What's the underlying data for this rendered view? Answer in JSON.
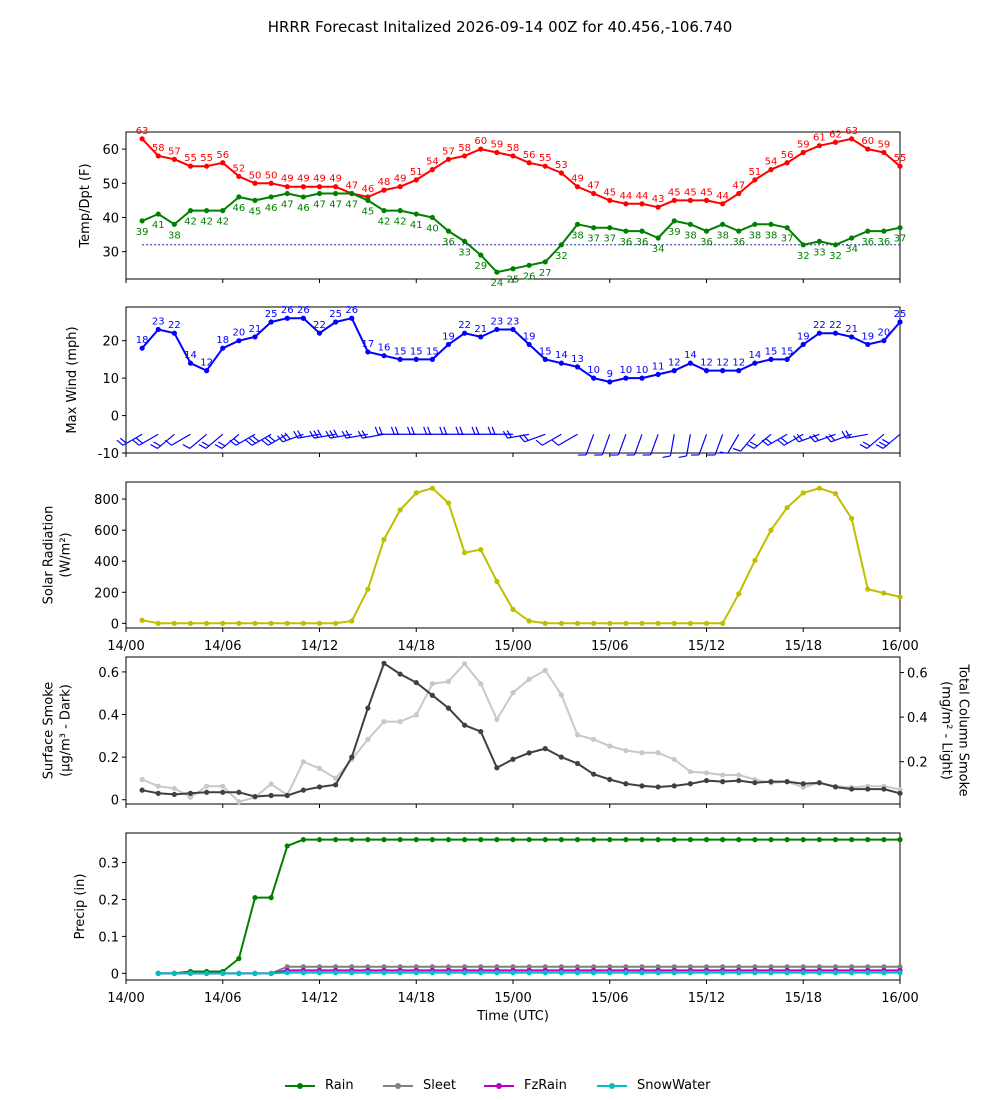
{
  "title": "HRRR Forecast Initalized 2026-09-14 00Z for 40.456,-106.740",
  "colors": {
    "temp": "#ff0000",
    "dewpoint": "#008000",
    "freezing_line": "#00008b",
    "wind": "#0000ff",
    "solar": "#bfbf00",
    "smoke_surface": "#404040",
    "smoke_column": "#c8c8c8",
    "rain": "#008000",
    "sleet": "#808080",
    "fzrain": "#bf00bf",
    "snowwater": "#00bfbf"
  },
  "chart_data": [
    {
      "id": "temp",
      "type": "line",
      "ylabel": "Temp/Dpt (F)",
      "ylim": [
        22,
        65
      ],
      "yticks": [
        30,
        40,
        50,
        60
      ],
      "x_hours": [
        1,
        2,
        3,
        4,
        5,
        6,
        7,
        8,
        9,
        10,
        11,
        12,
        13,
        14,
        15,
        16,
        17,
        18,
        19,
        20,
        21,
        22,
        23,
        24,
        25,
        26,
        27,
        28,
        29,
        30,
        31,
        32,
        33,
        34,
        35,
        36,
        37,
        38,
        39,
        40,
        41,
        42,
        43,
        44,
        45,
        46,
        47,
        48
      ],
      "freezing_line": 32,
      "series": [
        {
          "key": "temp",
          "labels": "above",
          "values": [
            63,
            58,
            57,
            55,
            55,
            56,
            52,
            50,
            50,
            49,
            49,
            49,
            49,
            47,
            46,
            48,
            49,
            51,
            54,
            57,
            58,
            60,
            59,
            58,
            56,
            55,
            53,
            49,
            47,
            45,
            44,
            44,
            43,
            45,
            45,
            45,
            44,
            47,
            51,
            54,
            56,
            59,
            61,
            62,
            63,
            60,
            59,
            55
          ]
        },
        {
          "key": "dewpoint",
          "labels": "below",
          "values": [
            39,
            41,
            38,
            42,
            42,
            42,
            46,
            45,
            46,
            47,
            46,
            47,
            47,
            47,
            45,
            42,
            42,
            41,
            40,
            36,
            33,
            29,
            24,
            25,
            26,
            27,
            32,
            38,
            37,
            37,
            36,
            36,
            34,
            39,
            38,
            36,
            38,
            36,
            38,
            38,
            37,
            32,
            33,
            32,
            34,
            36,
            36,
            37
          ]
        }
      ]
    },
    {
      "id": "wind",
      "type": "line",
      "ylabel": "Max Wind (mph)",
      "ylim": [
        -10,
        29
      ],
      "yticks": [
        -10,
        0,
        10,
        20
      ],
      "x_hours": [
        1,
        2,
        3,
        4,
        5,
        6,
        7,
        8,
        9,
        10,
        11,
        12,
        13,
        14,
        15,
        16,
        17,
        18,
        19,
        20,
        21,
        22,
        23,
        24,
        25,
        26,
        27,
        28,
        29,
        30,
        31,
        32,
        33,
        34,
        35,
        36,
        37,
        38,
        39,
        40,
        41,
        42,
        43,
        44,
        45,
        46,
        47,
        48
      ],
      "series": [
        {
          "key": "wind",
          "labels": "above",
          "values": [
            18,
            23,
            22,
            14,
            12,
            18,
            20,
            21,
            25,
            26,
            26,
            22,
            25,
            26,
            17,
            16,
            15,
            15,
            15,
            19,
            22,
            21,
            23,
            23,
            19,
            15,
            14,
            13,
            10,
            9,
            10,
            10,
            11,
            12,
            14,
            12,
            12,
            12,
            14,
            15,
            15,
            19,
            22,
            22,
            21,
            19,
            20,
            25
          ]
        }
      ],
      "wind_dir_deg": [
        240,
        240,
        230,
        240,
        230,
        230,
        230,
        240,
        240,
        240,
        250,
        260,
        260,
        260,
        260,
        260,
        270,
        270,
        270,
        270,
        270,
        270,
        270,
        270,
        260,
        250,
        240,
        240,
        200,
        200,
        200,
        200,
        200,
        190,
        190,
        200,
        200,
        210,
        220,
        230,
        240,
        240,
        250,
        250,
        250,
        260,
        230,
        230
      ]
    },
    {
      "id": "solar",
      "type": "line",
      "ylabel": "Solar Radiation",
      "ylabel_unit": "(W/m²)",
      "ylim": [
        -30,
        910
      ],
      "yticks": [
        0,
        200,
        400,
        600,
        800
      ],
      "xtick_labels": [
        "14/00",
        "14/06",
        "14/12",
        "14/18",
        "15/00",
        "15/06",
        "15/12",
        "15/18",
        "16/00"
      ],
      "x_hours": [
        1,
        2,
        3,
        4,
        5,
        6,
        7,
        8,
        9,
        10,
        11,
        12,
        13,
        14,
        15,
        16,
        17,
        18,
        19,
        20,
        21,
        22,
        23,
        24,
        25,
        26,
        27,
        28,
        29,
        30,
        31,
        32,
        33,
        34,
        35,
        36,
        37,
        38,
        39,
        40,
        41,
        42,
        43,
        44,
        45,
        46,
        47,
        48
      ],
      "series": [
        {
          "key": "solar",
          "values": [
            20,
            0,
            0,
            0,
            0,
            0,
            0,
            0,
            0,
            0,
            0,
            0,
            0,
            15,
            220,
            540,
            730,
            840,
            870,
            775,
            455,
            475,
            270,
            90,
            15,
            0,
            0,
            0,
            0,
            0,
            0,
            0,
            0,
            0,
            0,
            0,
            0,
            190,
            405,
            600,
            745,
            840,
            870,
            835,
            675,
            220,
            195,
            170
          ]
        }
      ]
    },
    {
      "id": "smoke",
      "type": "line",
      "ylabel": "Surface Smoke",
      "ylabel_unit": "(μg/m³ - Dark)",
      "ylabel_right": "Total Column Smoke",
      "ylabel_right_unit": "(mg/m² - Light)",
      "ylim": [
        -0.02,
        0.67
      ],
      "yticks": [
        0.0,
        0.2,
        0.4,
        0.6
      ],
      "ylim_right": [
        0.01,
        0.67
      ],
      "yticks_right": [
        0.2,
        0.4,
        0.6
      ],
      "x_hours": [
        1,
        2,
        3,
        4,
        5,
        6,
        7,
        8,
        9,
        10,
        11,
        12,
        13,
        14,
        15,
        16,
        17,
        18,
        19,
        20,
        21,
        22,
        23,
        24,
        25,
        26,
        27,
        28,
        29,
        30,
        31,
        32,
        33,
        34,
        35,
        36,
        37,
        38,
        39,
        40,
        41,
        42,
        43,
        44,
        45,
        46,
        47,
        48
      ],
      "series": [
        {
          "key": "smoke_surface",
          "axis": "left",
          "values": [
            0.045,
            0.03,
            0.025,
            0.03,
            0.035,
            0.035,
            0.035,
            0.015,
            0.02,
            0.02,
            0.045,
            0.06,
            0.07,
            0.2,
            0.43,
            0.64,
            0.59,
            0.55,
            0.49,
            0.43,
            0.35,
            0.32,
            0.15,
            0.19,
            0.22,
            0.24,
            0.2,
            0.17,
            0.12,
            0.095,
            0.075,
            0.065,
            0.06,
            0.065,
            0.075,
            0.09,
            0.085,
            0.09,
            0.08,
            0.085,
            0.085,
            0.075,
            0.08,
            0.06,
            0.05,
            0.05,
            0.05,
            0.03
          ]
        },
        {
          "key": "smoke_column",
          "axis": "right",
          "values": [
            0.12,
            0.09,
            0.08,
            0.04,
            0.09,
            0.09,
            0.02,
            0.04,
            0.1,
            0.05,
            0.2,
            0.17,
            0.125,
            0.21,
            0.3,
            0.38,
            0.38,
            0.41,
            0.55,
            0.56,
            0.64,
            0.55,
            0.39,
            0.51,
            0.57,
            0.61,
            0.5,
            0.32,
            0.3,
            0.27,
            0.25,
            0.24,
            0.24,
            0.21,
            0.155,
            0.15,
            0.14,
            0.14,
            0.12,
            0.105,
            0.11,
            0.085,
            0.105,
            0.09,
            0.085,
            0.09,
            0.09,
            0.075
          ]
        }
      ]
    },
    {
      "id": "precip",
      "type": "line",
      "ylabel": "Precip (in)",
      "xlabel": "Time (UTC)",
      "ylim": [
        -0.018,
        0.38
      ],
      "yticks": [
        0.0,
        0.1,
        0.2,
        0.3
      ],
      "xtick_labels": [
        "14/00",
        "14/06",
        "14/12",
        "14/18",
        "15/00",
        "15/06",
        "15/12",
        "15/18",
        "16/00"
      ],
      "x_hours": [
        2,
        3,
        4,
        5,
        6,
        7,
        8,
        9,
        10,
        11,
        12,
        13,
        14,
        15,
        16,
        17,
        18,
        19,
        20,
        21,
        22,
        23,
        24,
        25,
        26,
        27,
        28,
        29,
        30,
        31,
        32,
        33,
        34,
        35,
        36,
        37,
        38,
        39,
        40,
        41,
        42,
        43,
        44,
        45,
        46,
        47,
        48
      ],
      "series": [
        {
          "key": "rain",
          "name": "Rain",
          "values": [
            0,
            0,
            0.005,
            0.005,
            0.005,
            0.04,
            0.205,
            0.205,
            0.345,
            0.362,
            0.362,
            0.362,
            0.362,
            0.362,
            0.362,
            0.362,
            0.362,
            0.362,
            0.362,
            0.362,
            0.362,
            0.362,
            0.362,
            0.362,
            0.362,
            0.362,
            0.362,
            0.362,
            0.362,
            0.362,
            0.362,
            0.362,
            0.362,
            0.362,
            0.362,
            0.362,
            0.362,
            0.362,
            0.362,
            0.362,
            0.362,
            0.362,
            0.362,
            0.362,
            0.362,
            0.362,
            0.362
          ]
        },
        {
          "key": "sleet",
          "name": "Sleet",
          "values": [
            0,
            0,
            0,
            0,
            0,
            0,
            0,
            0,
            0.018,
            0.018,
            0.018,
            0.018,
            0.018,
            0.018,
            0.018,
            0.018,
            0.018,
            0.018,
            0.018,
            0.018,
            0.018,
            0.018,
            0.018,
            0.018,
            0.018,
            0.018,
            0.018,
            0.018,
            0.018,
            0.018,
            0.018,
            0.018,
            0.018,
            0.018,
            0.018,
            0.018,
            0.018,
            0.018,
            0.018,
            0.018,
            0.018,
            0.018,
            0.018,
            0.018,
            0.018,
            0.018,
            0.018
          ]
        },
        {
          "key": "fzrain",
          "name": "FzRain",
          "values": [
            0,
            0,
            0,
            0,
            0,
            0,
            0,
            0,
            0.008,
            0.008,
            0.008,
            0.008,
            0.008,
            0.008,
            0.008,
            0.008,
            0.008,
            0.008,
            0.008,
            0.008,
            0.008,
            0.008,
            0.008,
            0.008,
            0.008,
            0.008,
            0.008,
            0.008,
            0.008,
            0.008,
            0.008,
            0.008,
            0.008,
            0.008,
            0.008,
            0.008,
            0.008,
            0.008,
            0.008,
            0.008,
            0.008,
            0.008,
            0.008,
            0.008,
            0.008,
            0.008,
            0.008
          ]
        },
        {
          "key": "snowwater",
          "name": "SnowWater",
          "values": [
            0,
            0,
            0,
            0,
            0,
            0,
            0,
            0,
            0.002,
            0.002,
            0.002,
            0.002,
            0.002,
            0.002,
            0.002,
            0.002,
            0.002,
            0.002,
            0.002,
            0.002,
            0.002,
            0.002,
            0.002,
            0.002,
            0.002,
            0.002,
            0.002,
            0.002,
            0.002,
            0.002,
            0.002,
            0.002,
            0.002,
            0.002,
            0.002,
            0.002,
            0.002,
            0.002,
            0.002,
            0.002,
            0.002,
            0.002,
            0.002,
            0.002,
            0.002,
            0.002,
            0.002
          ]
        }
      ]
    }
  ],
  "legend": [
    {
      "key": "rain",
      "label": "Rain"
    },
    {
      "key": "sleet",
      "label": "Sleet"
    },
    {
      "key": "fzrain",
      "label": "FzRain"
    },
    {
      "key": "snowwater",
      "label": "SnowWater"
    }
  ]
}
